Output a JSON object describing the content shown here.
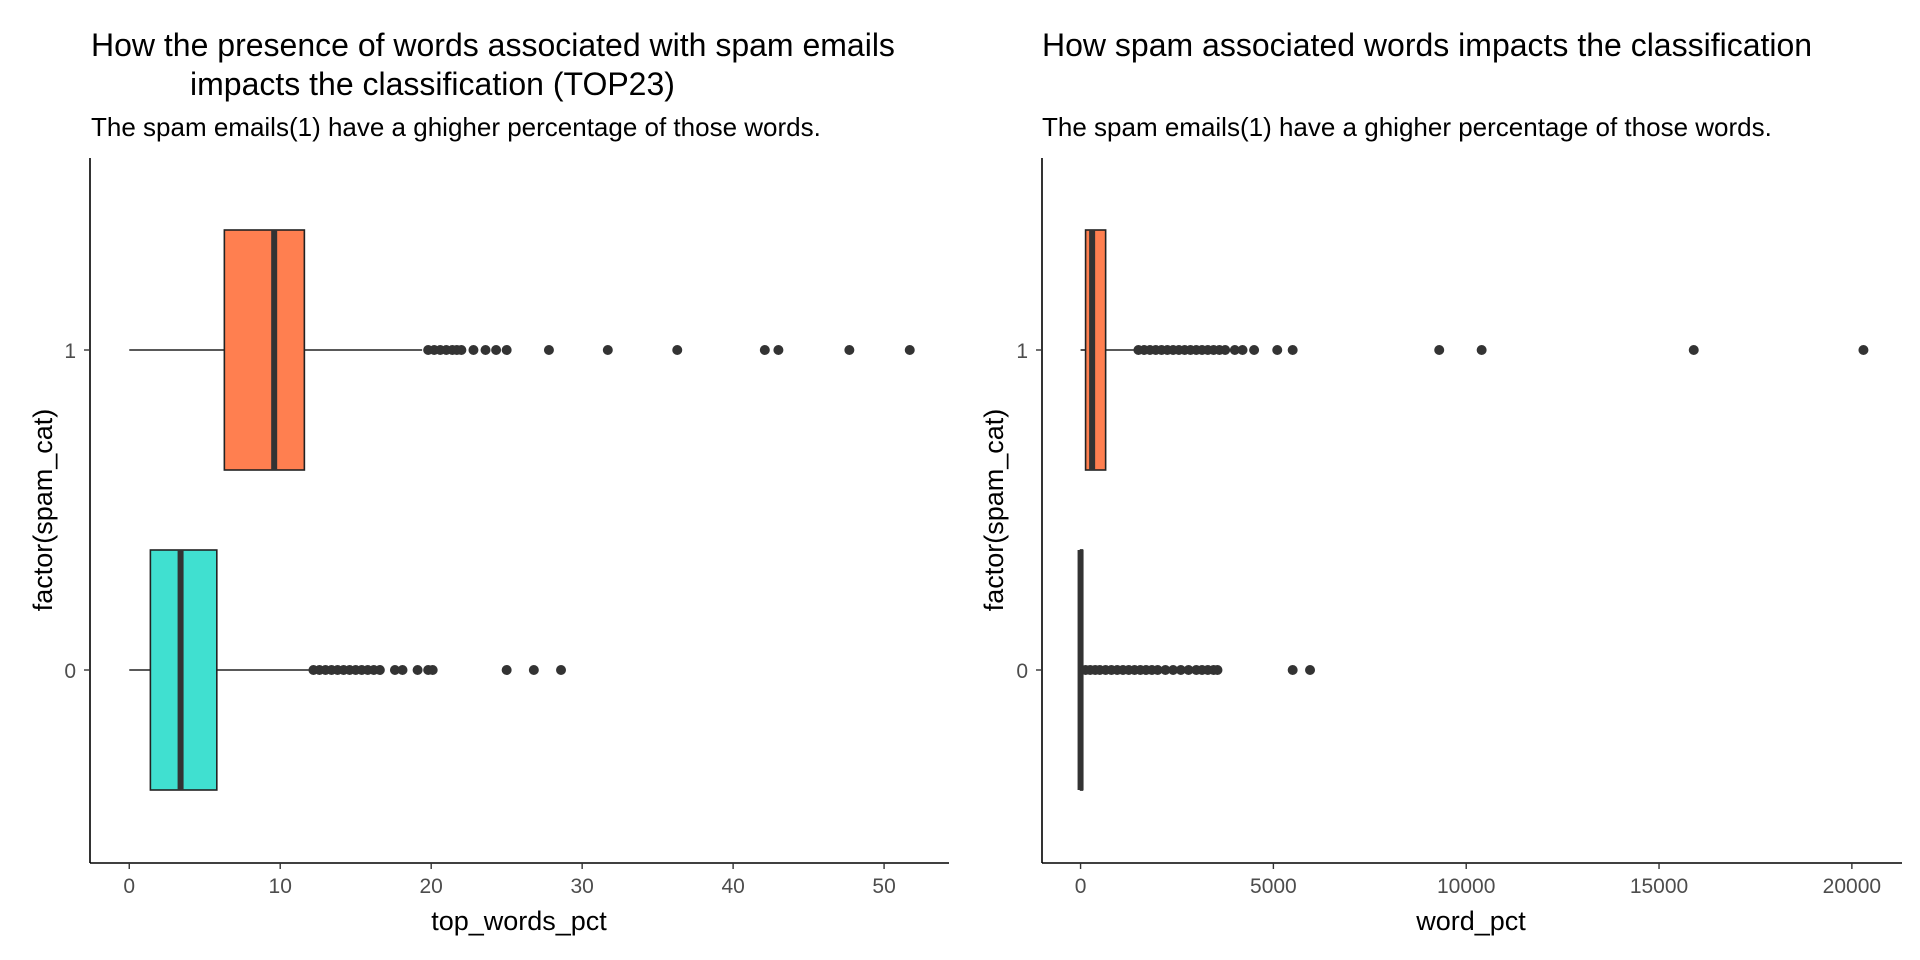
{
  "chart_data": [
    {
      "type": "boxplot",
      "title_lines": [
        "How the presence of words associated with spam emails",
        "impacts the classification (TOP23)"
      ],
      "subtitle": "The spam emails(1) have a ghigher percentage of those words.",
      "xlabel": "top_words_pct",
      "ylabel": "factor(spam_cat)",
      "xlim": [
        -2.6,
        54.3
      ],
      "xticks": [
        0,
        10,
        20,
        30,
        40,
        50
      ],
      "categories": [
        "1",
        "0"
      ],
      "series": [
        {
          "category": "1",
          "color": "#ff7f50",
          "whisker_low": 0,
          "q1": 6.3,
          "median": 9.6,
          "q3": 11.6,
          "whisker_high": 19.4,
          "outliers": [
            19.8,
            20.2,
            20.6,
            21.0,
            21.4,
            21.7,
            22.0,
            22.8,
            23.6,
            24.3,
            25.0,
            27.8,
            31.7,
            36.3,
            42.1,
            43.0,
            47.7,
            51.7
          ]
        },
        {
          "category": "0",
          "color": "#40e0d0",
          "whisker_low": 0,
          "q1": 1.4,
          "median": 3.4,
          "q3": 5.8,
          "whisker_high": 12.0,
          "outliers": [
            12.2,
            12.6,
            13.0,
            13.4,
            13.8,
            14.2,
            14.6,
            15.0,
            15.4,
            15.8,
            16.2,
            16.6,
            17.6,
            18.1,
            19.1,
            19.8,
            20.1,
            25.0,
            26.8,
            28.6
          ]
        }
      ]
    },
    {
      "type": "boxplot",
      "title_lines": [
        "How spam associated words impacts the classification"
      ],
      "subtitle": "The spam emails(1) have a ghigher percentage of those words.",
      "xlabel": "word_pct",
      "ylabel": "factor(spam_cat)",
      "xlim": [
        -1000,
        21300
      ],
      "xticks": [
        0,
        5000,
        10000,
        15000,
        20000
      ],
      "categories": [
        "1",
        "0"
      ],
      "series": [
        {
          "category": "1",
          "color": "#ff7f50",
          "whisker_low": 0,
          "q1": 130,
          "median": 300,
          "q3": 650,
          "whisker_high": 1450,
          "outliers": [
            1500,
            1650,
            1800,
            1950,
            2100,
            2250,
            2400,
            2550,
            2700,
            2850,
            3000,
            3150,
            3300,
            3450,
            3600,
            3750,
            4000,
            4200,
            4500,
            5100,
            5500,
            9300,
            10400,
            15900,
            20300
          ]
        },
        {
          "category": "0",
          "color": "#40e0d0",
          "whisker_low": 0,
          "q1": 0,
          "median": 0,
          "q3": 50,
          "whisker_high": 100,
          "outliers": [
            130,
            250,
            380,
            500,
            650,
            800,
            950,
            1100,
            1250,
            1400,
            1550,
            1700,
            1850,
            2000,
            2200,
            2400,
            2600,
            2800,
            3000,
            3150,
            3300,
            3450,
            3550,
            5500,
            5950
          ]
        }
      ]
    }
  ]
}
